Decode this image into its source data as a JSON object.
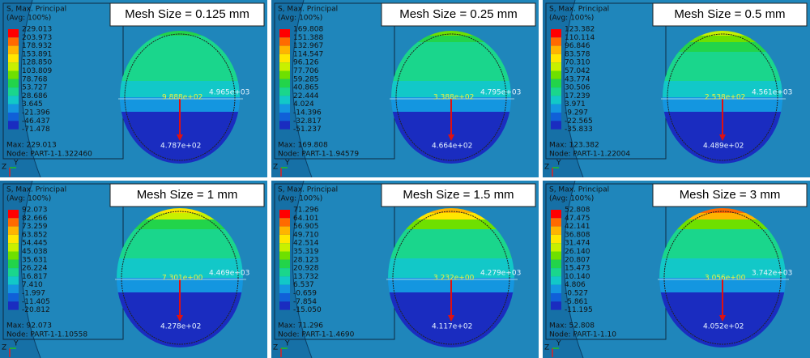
{
  "legend_header": [
    "S, Max. Principal",
    "(Avg: 100%)"
  ],
  "triad": [
    "Z",
    "Y"
  ],
  "panels": [
    {
      "title": "Mesh Size = 0.125 mm",
      "legend": [
        "229.013",
        "203.973",
        "178.932",
        "153.891",
        "128.850",
        "103.809",
        "78.768",
        "53.727",
        "28.686",
        "3.645",
        "-21.396",
        "-46.437",
        "-71.478"
      ],
      "max": "Max: 229.013",
      "node": "Node: PART-1-1.322460",
      "label_center": "9.888e+02",
      "label_right": "4.965e+03",
      "label_bottom": "4.787e+02"
    },
    {
      "title": "Mesh Size = 0.25 mm",
      "legend": [
        "169.808",
        "151.388",
        "132.967",
        "114.547",
        "96.126",
        "77.706",
        "59.285",
        "40.865",
        "22.444",
        "4.024",
        "-14.396",
        "-32.817",
        "-51.237"
      ],
      "max": "Max: 169.808",
      "node": "Node: PART-1-1.94579",
      "label_center": "3.388e+02",
      "label_right": "4.795e+03",
      "label_bottom": "4.664e+02"
    },
    {
      "title": "Mesh Size = 0.5 mm",
      "legend": [
        "123.382",
        "110.114",
        "96.846",
        "83.578",
        "70.310",
        "57.042",
        "43.774",
        "30.506",
        "17.239",
        "3.971",
        "-9.297",
        "-22.565",
        "-35.833"
      ],
      "max": "Max: 123.382",
      "node": "Node: PART-1-1.22004",
      "label_center": "2.538e+02",
      "label_right": "4.561e+03",
      "label_bottom": "4.489e+02"
    },
    {
      "title": "Mesh Size = 1 mm",
      "legend": [
        "92.073",
        "82.666",
        "73.259",
        "63.852",
        "54.445",
        "45.038",
        "35.631",
        "26.224",
        "16.817",
        "7.410",
        "-1.997",
        "-11.405",
        "-20.812"
      ],
      "max": "Max: 92.073",
      "node": "Node: PART-1-1.10558",
      "label_center": "7.301e+00",
      "label_right": "4.469e+03",
      "label_bottom": "4.278e+02"
    },
    {
      "title": "Mesh Size = 1.5 mm",
      "legend": [
        "71.296",
        "64.101",
        "56.905",
        "49.710",
        "42.514",
        "35.319",
        "28.123",
        "20.928",
        "13.732",
        "6.537",
        "-0.659",
        "-7.854",
        "-15.050"
      ],
      "max": "Max: 71.296",
      "node": "Node: PART-1-1.4690",
      "label_center": "3.232e+00",
      "label_right": "4.279e+03",
      "label_bottom": "4.117e+02"
    },
    {
      "title": "Mesh Size = 3 mm",
      "legend": [
        "52.808",
        "47.475",
        "42.141",
        "36.808",
        "31.474",
        "26.140",
        "20.807",
        "15.473",
        "10.140",
        "4.806",
        "-0.527",
        "-5.861",
        "-11.195"
      ],
      "max": "Max: 52.808",
      "node": "Node: PART-1-1.10",
      "label_center": "3.056e+00",
      "label_right": "3.742e+03",
      "label_bottom": "4.052e+02"
    }
  ]
}
